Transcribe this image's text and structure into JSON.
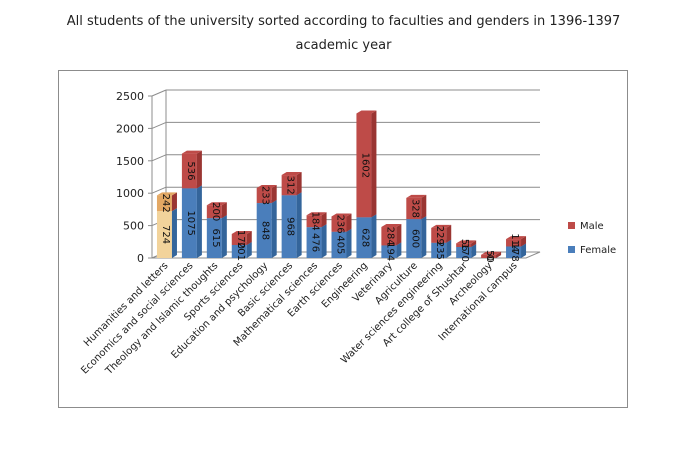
{
  "chart_data": {
    "type": "bar",
    "stacked": true,
    "three_d": true,
    "title": "All students of the university sorted according to faculties and genders in 1396-1397 academic year",
    "title_lines": [
      "All students of the university sorted according to faculties and genders in 1396-1397",
      "academic year"
    ],
    "categories": [
      "Humanities and letters",
      "Economics and social sciences",
      "Theology and Islamic thoughts",
      "Sports sciences",
      "Education and psychology",
      "Basic sciences",
      "Mathematical sciences",
      "Earth sciences",
      "Engineering",
      "Veterinary",
      "Agriculture",
      "Water sciences engineering",
      "Art college of Shushtar",
      "Archeology",
      "International campus"
    ],
    "series": [
      {
        "name": "Female",
        "values": [
          724,
          1075,
          615,
          201,
          848,
          968,
          476,
          405,
          628,
          194,
          600,
          235,
          170,
          0,
          178
        ],
        "labels": [
          "724",
          "1075",
          "615",
          "201",
          "848",
          "968",
          "476",
          "405",
          "628",
          "194",
          "600",
          "235",
          "170",
          "0",
          "178"
        ]
      },
      {
        "name": "Male",
        "values": [
          242,
          536,
          200,
          170,
          233,
          312,
          184,
          236,
          1602,
          284,
          328,
          229,
          56,
          50,
          114
        ],
        "labels": [
          "242",
          "536",
          "200",
          "170",
          "233",
          "312",
          "184",
          "236",
          "1602",
          "284",
          "328",
          "229",
          "56",
          "50",
          "114"
        ]
      }
    ],
    "highlight_index": 0,
    "ylim": [
      0,
      2500
    ],
    "yticks": [
      "0",
      "500",
      "1000",
      "1500",
      "2000",
      "2500"
    ],
    "xlabel": "",
    "ylabel": "",
    "grid": true,
    "legend_position": "right",
    "legend": [
      "Male",
      "Female"
    ]
  },
  "colors": {
    "female": "#4a7ebb",
    "female_dark": "#34659b",
    "male": "#be4b48",
    "male_dark": "#9a3532",
    "highlight_female": "#f2d39b",
    "highlight_male": "#e3a864"
  }
}
